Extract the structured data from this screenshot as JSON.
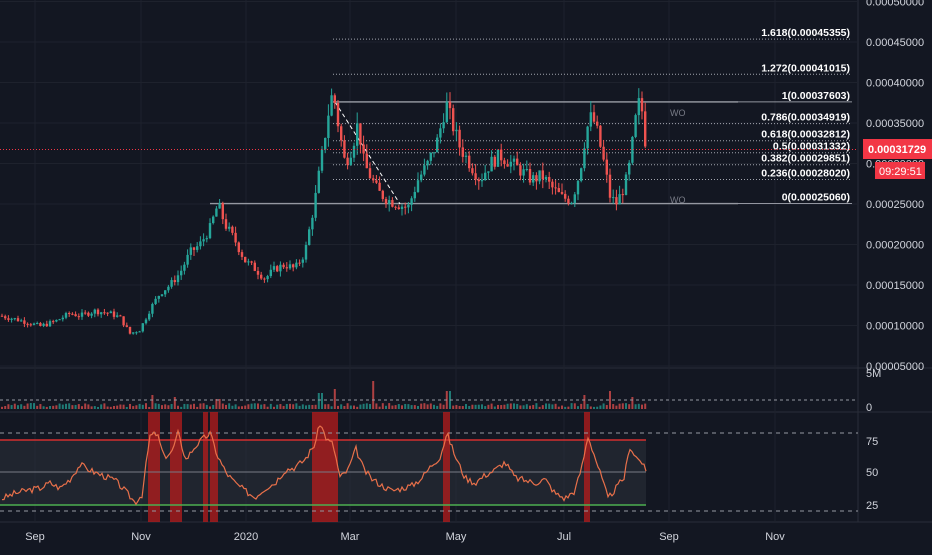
{
  "colors": {
    "background": "#131722",
    "up": "#26a69a",
    "down": "#ef5350",
    "grid": "#1e222d",
    "axis_text": "#d1d4dc",
    "fib_line": "#b2b5be",
    "price_line": "#f23645",
    "rsi_line": "#e8704a",
    "rsi_band": "#2a2e39",
    "rsi_upper": "#d32f2f",
    "rsi_lower": "#4caf50",
    "rsi_highlight": "#b71c1c"
  },
  "price_axis": {
    "ticks": [
      "0.00050000",
      "0.00045000",
      "0.00040000",
      "0.00035000",
      "0.00030000",
      "0.00025000",
      "0.00020000",
      "0.00015000",
      "0.00010000",
      "0.00005000"
    ],
    "tick_values": [
      0.0005,
      0.00045,
      0.0004,
      0.00035,
      0.0003,
      0.00025,
      0.0002,
      0.00015,
      0.0001,
      5e-05
    ]
  },
  "time_axis": {
    "labels": [
      "Sep",
      "Nov",
      "2020",
      "Mar",
      "May",
      "Jul",
      "Sep",
      "Nov"
    ]
  },
  "price_label": {
    "value": "0.00031729",
    "countdown": "09:29:51",
    "level": 0.00031729
  },
  "volume_axis": {
    "top": "5M",
    "bottom": "0"
  },
  "rsi_axis": {
    "ticks": [
      "75",
      "50",
      "25"
    ],
    "tick_values": [
      75,
      50,
      25
    ]
  },
  "fib_levels": [
    {
      "label": "1.618(0.00045355)",
      "value": 0.00045355
    },
    {
      "label": "1.272(0.00041015)",
      "value": 0.00041015
    },
    {
      "label": "1(0.00037603)",
      "value": 0.00037603
    },
    {
      "label": "0.786(0.00034919)",
      "value": 0.00034919
    },
    {
      "label": "0.618(0.00032812)",
      "value": 0.00032812
    },
    {
      "label": "0.5(0.00031332)",
      "value": 0.00031332
    },
    {
      "label": "0.382(0.00029851)",
      "value": 0.00029851
    },
    {
      "label": "0.236(0.00028020)",
      "value": 0.0002802
    },
    {
      "label": "0(0.00025060)",
      "value": 0.0002506
    }
  ],
  "annotations": [
    "WO",
    "WO"
  ],
  "chart_data": {
    "type": "candlestick",
    "x_labels": [
      "Sep",
      "Nov",
      "2020",
      "Mar",
      "May",
      "Jul",
      "Sep",
      "Nov"
    ],
    "y_range": [
      4e-05,
      0.00051
    ],
    "close_path": [
      [
        0,
        0.000112
      ],
      [
        15,
        0.000108
      ],
      [
        30,
        0.000103
      ],
      [
        40,
        9.9e-05
      ],
      [
        55,
        0.000105
      ],
      [
        70,
        0.000115
      ],
      [
        80,
        0.000112
      ],
      [
        95,
        0.000118
      ],
      [
        110,
        0.000115
      ],
      [
        120,
        0.00011
      ],
      [
        130,
        9e-05
      ],
      [
        140,
        9.5e-05
      ],
      [
        150,
        0.00012
      ],
      [
        160,
        0.00014
      ],
      [
        170,
        0.00015
      ],
      [
        180,
        0.000165
      ],
      [
        190,
        0.00019
      ],
      [
        200,
        0.0002
      ],
      [
        210,
        0.00022
      ],
      [
        218,
        0.00025
      ],
      [
        225,
        0.000225
      ],
      [
        235,
        0.000205
      ],
      [
        245,
        0.00018
      ],
      [
        255,
        0.00017
      ],
      [
        265,
        0.000158
      ],
      [
        275,
        0.00017
      ],
      [
        285,
        0.000175
      ],
      [
        295,
        0.00017
      ],
      [
        305,
        0.00019
      ],
      [
        315,
        0.000255
      ],
      [
        322,
        0.00031
      ],
      [
        328,
        0.00036
      ],
      [
        333,
        0.00039
      ],
      [
        338,
        0.00035
      ],
      [
        345,
        0.0003
      ],
      [
        352,
        0.00032
      ],
      [
        358,
        0.00035
      ],
      [
        364,
        0.0003
      ],
      [
        370,
        0.000285
      ],
      [
        378,
        0.000265
      ],
      [
        388,
        0.000255
      ],
      [
        398,
        0.00025
      ],
      [
        408,
        0.000245
      ],
      [
        418,
        0.00028
      ],
      [
        428,
        0.0003
      ],
      [
        438,
        0.00033
      ],
      [
        446,
        0.000375
      ],
      [
        452,
        0.00035
      ],
      [
        460,
        0.00032
      ],
      [
        470,
        0.0003
      ],
      [
        480,
        0.00028
      ],
      [
        490,
        0.0003
      ],
      [
        500,
        0.00031
      ],
      [
        512,
        0.0003
      ],
      [
        522,
        0.00029
      ],
      [
        532,
        0.00028
      ],
      [
        542,
        0.000285
      ],
      [
        552,
        0.00027
      ],
      [
        562,
        0.000258
      ],
      [
        572,
        0.000255
      ],
      [
        580,
        0.00029
      ],
      [
        586,
        0.00034
      ],
      [
        592,
        0.00036
      ],
      [
        598,
        0.000335
      ],
      [
        604,
        0.0003
      ],
      [
        610,
        0.00026
      ],
      [
        616,
        0.00025
      ],
      [
        622,
        0.000265
      ],
      [
        628,
        0.000285
      ],
      [
        633,
        0.00033
      ],
      [
        638,
        0.000375
      ],
      [
        642,
        0.000365
      ],
      [
        646,
        0.00032
      ]
    ],
    "volume_spikes": [
      [
        152,
        0.35
      ],
      [
        175,
        0.3
      ],
      [
        218,
        0.25
      ],
      [
        320,
        0.4
      ],
      [
        335,
        0.5
      ],
      [
        372,
        0.7
      ],
      [
        448,
        0.45
      ],
      [
        585,
        0.35
      ],
      [
        610,
        0.45
      ],
      [
        632,
        0.3
      ]
    ],
    "rsi_path": [
      [
        2,
        0.3
      ],
      [
        15,
        0.34
      ],
      [
        25,
        0.36
      ],
      [
        40,
        0.38
      ],
      [
        50,
        0.42
      ],
      [
        60,
        0.38
      ],
      [
        70,
        0.45
      ],
      [
        80,
        0.56
      ],
      [
        95,
        0.5
      ],
      [
        105,
        0.47
      ],
      [
        115,
        0.44
      ],
      [
        125,
        0.36
      ],
      [
        135,
        0.27
      ],
      [
        142,
        0.33
      ],
      [
        150,
        0.78
      ],
      [
        157,
        0.8
      ],
      [
        164,
        0.62
      ],
      [
        172,
        0.66
      ],
      [
        178,
        0.8
      ],
      [
        186,
        0.6
      ],
      [
        195,
        0.7
      ],
      [
        203,
        0.76
      ],
      [
        210,
        0.8
      ],
      [
        218,
        0.62
      ],
      [
        226,
        0.5
      ],
      [
        235,
        0.42
      ],
      [
        245,
        0.36
      ],
      [
        255,
        0.31
      ],
      [
        265,
        0.38
      ],
      [
        275,
        0.42
      ],
      [
        285,
        0.52
      ],
      [
        295,
        0.54
      ],
      [
        305,
        0.6
      ],
      [
        315,
        0.72
      ],
      [
        320,
        0.88
      ],
      [
        327,
        0.75
      ],
      [
        333,
        0.72
      ],
      [
        340,
        0.46
      ],
      [
        348,
        0.52
      ],
      [
        356,
        0.68
      ],
      [
        364,
        0.52
      ],
      [
        372,
        0.45
      ],
      [
        382,
        0.4
      ],
      [
        392,
        0.36
      ],
      [
        402,
        0.38
      ],
      [
        412,
        0.4
      ],
      [
        422,
        0.46
      ],
      [
        432,
        0.56
      ],
      [
        440,
        0.62
      ],
      [
        447,
        0.8
      ],
      [
        455,
        0.63
      ],
      [
        465,
        0.46
      ],
      [
        475,
        0.42
      ],
      [
        485,
        0.48
      ],
      [
        495,
        0.52
      ],
      [
        505,
        0.58
      ],
      [
        515,
        0.46
      ],
      [
        525,
        0.44
      ],
      [
        535,
        0.42
      ],
      [
        545,
        0.45
      ],
      [
        555,
        0.34
      ],
      [
        565,
        0.3
      ],
      [
        575,
        0.36
      ],
      [
        582,
        0.55
      ],
      [
        588,
        0.78
      ],
      [
        595,
        0.62
      ],
      [
        602,
        0.45
      ],
      [
        608,
        0.3
      ],
      [
        616,
        0.38
      ],
      [
        624,
        0.46
      ],
      [
        630,
        0.7
      ],
      [
        636,
        0.62
      ],
      [
        642,
        0.58
      ],
      [
        646,
        0.5
      ]
    ],
    "rsi_highlights": [
      [
        148,
        160
      ],
      [
        170,
        182
      ],
      [
        203,
        208
      ],
      [
        210,
        218
      ],
      [
        312,
        338
      ],
      [
        443,
        450
      ],
      [
        584,
        590
      ]
    ]
  }
}
